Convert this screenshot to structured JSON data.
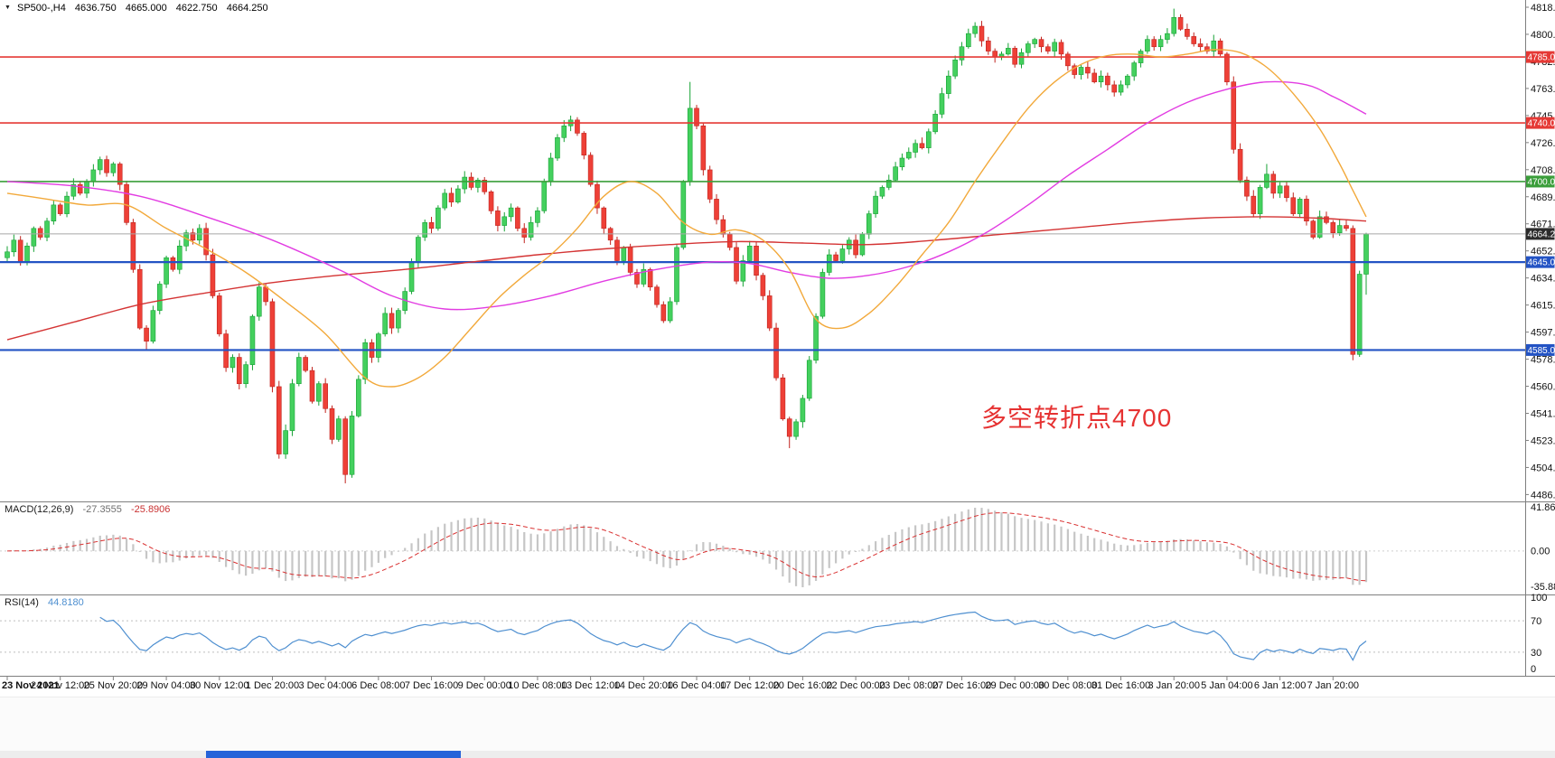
{
  "header": {
    "dropdown_icon": "▼",
    "symbol_period": "SP500-,H4",
    "open": "4636.750",
    "high": "4665.000",
    "low": "4622.750",
    "close": "4664.250"
  },
  "annotation": {
    "text": "多空转折点4700",
    "color": "#e63232"
  },
  "indicators": {
    "macd": {
      "label": "MACD(12,26,9)",
      "value_main": "-27.3555",
      "value_signal": "-25.8906",
      "axis_labels": [
        "41.8694",
        "0.00",
        "-35.8856"
      ],
      "bar_color": "#c6c6c6",
      "signal_color": "#d93030"
    },
    "rsi": {
      "label": "RSI(14)",
      "value": "44.8180",
      "axis_labels": [
        "100",
        "70",
        "30",
        "0"
      ],
      "levels": [
        70,
        30
      ],
      "line_color": "#4e8fd0"
    }
  },
  "chart_data": {
    "type": "candlestick",
    "symbol": "SP500-",
    "timeframe": "H4",
    "y_axis": {
      "min": 4486.34,
      "max": 4818.98,
      "labels": [
        "4818.980",
        "4800.500",
        "4782.020",
        "4763.540",
        "4745.060",
        "4726.580",
        "4708.100",
        "4689.620",
        "4671.140",
        "4652.660",
        "4634.180",
        "4615.700",
        "4597.220",
        "4578.740",
        "4560.260",
        "4541.780",
        "4523.300",
        "4504.820",
        "4486.340"
      ]
    },
    "x_axis": {
      "label_every_n_candles": 8,
      "labels": [
        "23 Nov 2021",
        "24 Nov 12:00",
        "25 Nov 20:00",
        "29 Nov 04:00",
        "30 Nov 12:00",
        "1 Dec 20:00",
        "3 Dec 04:00",
        "6 Dec 08:00",
        "7 Dec 16:00",
        "9 Dec 00:00",
        "10 Dec 08:00",
        "13 Dec 12:00",
        "14 Dec 20:00",
        "16 Dec 04:00",
        "17 Dec 12:00",
        "20 Dec 16:00",
        "22 Dec 00:00",
        "23 Dec 08:00",
        "27 Dec 16:00",
        "29 Dec 00:00",
        "30 Dec 08:00",
        "31 Dec 16:00",
        "3 Jan 20:00",
        "5 Jan 04:00",
        "6 Jan 12:00",
        "7 Jan 20:00"
      ]
    },
    "first_open": 4648,
    "closes": [
      4652,
      4660,
      4645,
      4656,
      4668,
      4662,
      4673,
      4684,
      4678,
      4690,
      4698,
      4692,
      4700,
      4708,
      4715,
      4706,
      4712,
      4698,
      4672,
      4640,
      4600,
      4591,
      4612,
      4630,
      4648,
      4640,
      4656,
      4665,
      4660,
      4668,
      4650,
      4622,
      4596,
      4573,
      4580,
      4562,
      4575,
      4608,
      4628,
      4618,
      4560,
      4514,
      4530,
      4562,
      4580,
      4571,
      4550,
      4562,
      4545,
      4524,
      4538,
      4500,
      4540,
      4565,
      4590,
      4580,
      4596,
      4610,
      4600,
      4612,
      4625,
      4645,
      4662,
      4672,
      4668,
      4682,
      4692,
      4686,
      4695,
      4703,
      4696,
      4701,
      4693,
      4680,
      4670,
      4676,
      4682,
      4668,
      4662,
      4672,
      4680,
      4700,
      4716,
      4730,
      4738,
      4742,
      4733,
      4718,
      4698,
      4682,
      4668,
      4660,
      4646,
      4655,
      4638,
      4630,
      4640,
      4628,
      4616,
      4605,
      4618,
      4655,
      4700,
      4750,
      4738,
      4708,
      4688,
      4674,
      4664,
      4655,
      4632,
      4646,
      4656,
      4636,
      4622,
      4600,
      4566,
      4538,
      4526,
      4536,
      4552,
      4578,
      4608,
      4638,
      4650,
      4646,
      4654,
      4660,
      4650,
      4664,
      4678,
      4690,
      4696,
      4701,
      4710,
      4716,
      4720,
      4726,
      4723,
      4734,
      4746,
      4760,
      4772,
      4783,
      4792,
      4801,
      4806,
      4796,
      4789,
      4785,
      4787,
      4791,
      4780,
      4788,
      4794,
      4797,
      4792,
      4789,
      4795,
      4787,
      4779,
      4773,
      4778,
      4774,
      4768,
      4772,
      4766,
      4761,
      4766,
      4772,
      4781,
      4789,
      4797,
      4792,
      4797,
      4801,
      4812,
      4804,
      4799,
      4794,
      4792,
      4789,
      4796,
      4787,
      4768,
      4722,
      4701,
      4690,
      4678,
      4696,
      4705,
      4692,
      4697,
      4689,
      4678,
      4688,
      4673,
      4662,
      4676,
      4672,
      4665,
      4670,
      4668,
      4582,
      4636.75,
      4664.25
    ],
    "wick_overrides": {
      "14": {
        "high": 4717
      },
      "21": {
        "low": 4585
      },
      "51": {
        "low": 4494
      },
      "85": {
        "high": 4745
      },
      "103": {
        "high": 4768
      },
      "118": {
        "low": 4518
      },
      "176": {
        "high": 4818
      },
      "190": {
        "high": 4712
      },
      "203": {
        "low": 4578
      },
      "205": {
        "high": 4665,
        "low": 4622.75
      }
    },
    "horizontal_lines": [
      {
        "price": 4785,
        "label": "4785.000",
        "color": "#e53935",
        "width": 1.6
      },
      {
        "price": 4740,
        "label": "4740.000",
        "color": "#e53935",
        "width": 1.6
      },
      {
        "price": 4700,
        "label": "4700.000",
        "color": "#3a9e3a",
        "width": 1.6
      },
      {
        "price": 4645,
        "label": "4645.000",
        "color": "#2353c4",
        "width": 2.2
      },
      {
        "price": 4585,
        "label": "4585.000",
        "color": "#2353c4",
        "width": 2.2
      }
    ],
    "last_price": {
      "price": 4664.25,
      "label": "4664.250",
      "line_color": "#a8a8a8",
      "badge_color": "#2b2b2b"
    },
    "moving_averages": [
      {
        "name": "ma-red-line",
        "color": "#d43434",
        "points": [
          [
            0,
            4592
          ],
          [
            10,
            4604
          ],
          [
            20,
            4616
          ],
          [
            30,
            4624
          ],
          [
            40,
            4631
          ],
          [
            50,
            4636
          ],
          [
            60,
            4640
          ],
          [
            70,
            4645
          ],
          [
            80,
            4650
          ],
          [
            90,
            4654
          ],
          [
            100,
            4657
          ],
          [
            110,
            4659
          ],
          [
            120,
            4658
          ],
          [
            130,
            4657
          ],
          [
            140,
            4660
          ],
          [
            150,
            4664
          ],
          [
            160,
            4668
          ],
          [
            170,
            4672
          ],
          [
            180,
            4675
          ],
          [
            190,
            4676
          ],
          [
            198,
            4675
          ],
          [
            205,
            4673
          ]
        ]
      },
      {
        "name": "ma-magenta-line",
        "color": "#e23ce2",
        "points": [
          [
            0,
            4700
          ],
          [
            10,
            4697
          ],
          [
            20,
            4690
          ],
          [
            30,
            4676
          ],
          [
            40,
            4660
          ],
          [
            50,
            4640
          ],
          [
            58,
            4622
          ],
          [
            66,
            4613
          ],
          [
            74,
            4615
          ],
          [
            82,
            4622
          ],
          [
            90,
            4632
          ],
          [
            98,
            4640
          ],
          [
            106,
            4645
          ],
          [
            112,
            4644
          ],
          [
            118,
            4638
          ],
          [
            124,
            4634
          ],
          [
            130,
            4636
          ],
          [
            136,
            4642
          ],
          [
            142,
            4652
          ],
          [
            148,
            4666
          ],
          [
            154,
            4684
          ],
          [
            160,
            4704
          ],
          [
            166,
            4722
          ],
          [
            172,
            4740
          ],
          [
            178,
            4754
          ],
          [
            184,
            4763
          ],
          [
            190,
            4768
          ],
          [
            196,
            4766
          ],
          [
            200,
            4758
          ],
          [
            203,
            4751
          ],
          [
            205,
            4746
          ]
        ]
      },
      {
        "name": "ma-orange-line",
        "color": "#f2a93b",
        "points": [
          [
            0,
            4692
          ],
          [
            6,
            4688
          ],
          [
            12,
            4684
          ],
          [
            18,
            4684
          ],
          [
            24,
            4668
          ],
          [
            30,
            4654
          ],
          [
            36,
            4638
          ],
          [
            42,
            4618
          ],
          [
            48,
            4596
          ],
          [
            54,
            4566
          ],
          [
            58,
            4560
          ],
          [
            62,
            4566
          ],
          [
            66,
            4580
          ],
          [
            70,
            4600
          ],
          [
            74,
            4620
          ],
          [
            78,
            4636
          ],
          [
            82,
            4650
          ],
          [
            86,
            4668
          ],
          [
            90,
            4690
          ],
          [
            94,
            4700
          ],
          [
            98,
            4692
          ],
          [
            102,
            4672
          ],
          [
            106,
            4664
          ],
          [
            110,
            4667
          ],
          [
            114,
            4660
          ],
          [
            118,
            4640
          ],
          [
            122,
            4606
          ],
          [
            126,
            4600
          ],
          [
            130,
            4610
          ],
          [
            134,
            4628
          ],
          [
            138,
            4650
          ],
          [
            142,
            4672
          ],
          [
            146,
            4700
          ],
          [
            150,
            4726
          ],
          [
            154,
            4750
          ],
          [
            158,
            4768
          ],
          [
            162,
            4780
          ],
          [
            166,
            4786
          ],
          [
            170,
            4787
          ],
          [
            174,
            4785
          ],
          [
            178,
            4787
          ],
          [
            182,
            4790
          ],
          [
            186,
            4788
          ],
          [
            190,
            4778
          ],
          [
            194,
            4760
          ],
          [
            198,
            4736
          ],
          [
            201,
            4712
          ],
          [
            203,
            4694
          ],
          [
            205,
            4676
          ]
        ]
      }
    ],
    "candle_up_color": "#44d05e",
    "candle_up_border": "#17a235",
    "candle_down_color": "#ee4037",
    "candle_down_border": "#c0241f"
  }
}
